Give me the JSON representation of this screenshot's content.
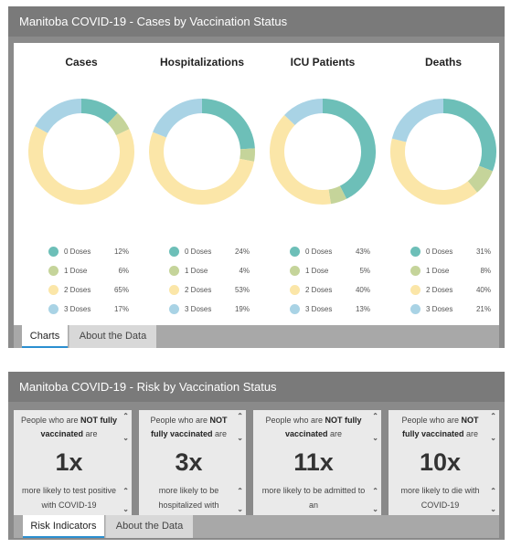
{
  "colors": {
    "zero": "#6dbfb8",
    "one": "#c5d49a",
    "two": "#fbe6a8",
    "three": "#a9d3e5"
  },
  "panel1": {
    "title": "Manitoba COVID-19 - Cases by Vaccination Status",
    "tabs": [
      {
        "label": "Charts"
      },
      {
        "label": "About the Data"
      }
    ]
  },
  "chart_data": [
    {
      "type": "pie",
      "title": "Cases",
      "categories": [
        "0 Doses",
        "1 Dose",
        "2 Doses",
        "3 Doses"
      ],
      "values": [
        12,
        6,
        65,
        17
      ],
      "labels": [
        "12%",
        "6%",
        "65%",
        "17%"
      ]
    },
    {
      "type": "pie",
      "title": "Hospitalizations",
      "categories": [
        "0 Doses",
        "1 Dose",
        "2 Doses",
        "3 Doses"
      ],
      "values": [
        24,
        4,
        53,
        19
      ],
      "labels": [
        "24%",
        "4%",
        "53%",
        "19%"
      ]
    },
    {
      "type": "pie",
      "title": "ICU Patients",
      "categories": [
        "0 Doses",
        "1 Dose",
        "2 Doses",
        "3 Doses"
      ],
      "values": [
        43,
        5,
        40,
        13
      ],
      "labels": [
        "43%",
        "5%",
        "40%",
        "13%"
      ]
    },
    {
      "type": "pie",
      "title": "Deaths",
      "categories": [
        "0 Doses",
        "1 Dose",
        "2 Doses",
        "3 Doses"
      ],
      "values": [
        31,
        8,
        40,
        21
      ],
      "labels": [
        "31%",
        "8%",
        "40%",
        "21%"
      ]
    }
  ],
  "panel2": {
    "title": "Manitoba COVID-19 - Risk by Vaccination Status",
    "tabs": [
      {
        "label": "Risk Indicators"
      },
      {
        "label": "About the Data"
      }
    ],
    "cells": [
      {
        "pre": "People who are ",
        "bold": "NOT fully vaccinated",
        "post": " are",
        "value": "1x",
        "bottom": "more likely to test positive with COVID-19"
      },
      {
        "pre": "People who are ",
        "bold": "NOT fully vaccinated",
        "post": " are",
        "value": "3x",
        "bottom": "more likely to be hospitalized with"
      },
      {
        "pre": "People who are ",
        "bold": "NOT fully vaccinated",
        "post": " are",
        "value": "11x",
        "bottom": "more likely to be admitted to an"
      },
      {
        "pre": "People who are ",
        "bold": "NOT fully vaccinated",
        "post": " are",
        "value": "10x",
        "bottom": "more likely to die with COVID-19"
      }
    ]
  }
}
